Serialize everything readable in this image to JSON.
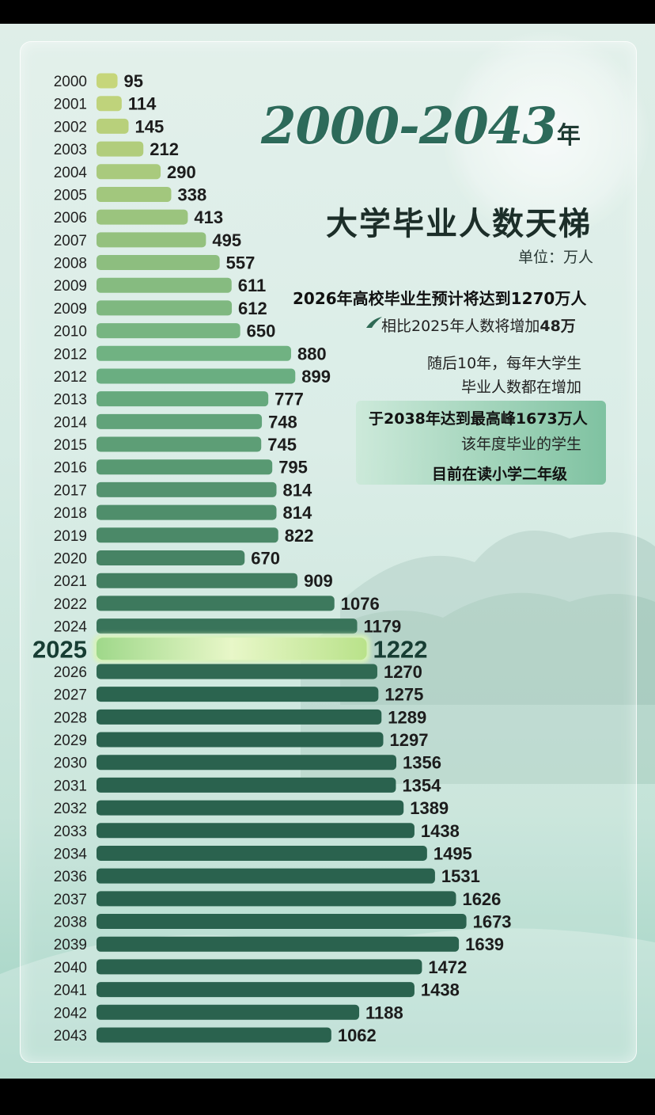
{
  "title": {
    "years": "2000-2043",
    "suffix": "年",
    "subtitle": "大学毕业人数天梯",
    "unit": "单位：万人"
  },
  "notes": {
    "line1": "2026年高校毕业生预计将达到1270万人",
    "line2_prefix": "相比2025年人数将增加",
    "line2_value": "48万",
    "line3": "随后10年，每年大学生",
    "line4": "毕业人数都在增加",
    "line5": "于2038年达到最高峰1673万人",
    "line6": "该年度毕业的学生",
    "line7": "目前在读小学二年级"
  },
  "colors": {
    "light_bar": "#c6d57a",
    "mid_bar": "#6fae82",
    "dark_bar": "#2f6a55",
    "highlight_bar": "#a8dc8a",
    "label": "#1c1c1c"
  },
  "chart_data": {
    "type": "bar",
    "orientation": "horizontal",
    "highlight_category": "2025",
    "categories": [
      "2000",
      "2001",
      "2002",
      "2003",
      "2004",
      "2005",
      "2006",
      "2007",
      "2008",
      "2009",
      "2009",
      "2010",
      "2012",
      "2012",
      "2013",
      "2014",
      "2015",
      "2016",
      "2017",
      "2018",
      "2019",
      "2020",
      "2021",
      "2022",
      "2024",
      "2025",
      "2026",
      "2027",
      "2028",
      "2029",
      "2030",
      "2031",
      "2032",
      "2033",
      "2034",
      "2036",
      "2037",
      "2038",
      "2039",
      "2040",
      "2041",
      "2042",
      "2043"
    ],
    "values": [
      95,
      114,
      145,
      212,
      290,
      338,
      413,
      495,
      557,
      611,
      612,
      650,
      880,
      899,
      777,
      748,
      745,
      795,
      814,
      814,
      822,
      670,
      909,
      1076,
      1179,
      1222,
      1270,
      1275,
      1289,
      1297,
      1356,
      1354,
      1389,
      1438,
      1495,
      1531,
      1626,
      1673,
      1639,
      1472,
      1438,
      1188,
      1062
    ]
  }
}
